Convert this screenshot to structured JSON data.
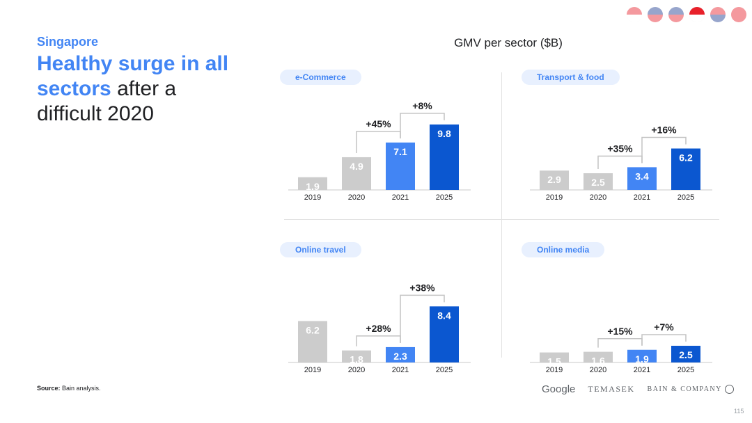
{
  "header": {
    "country": "Singapore",
    "headline_highlight": "Healthy surge in all sectors",
    "headline_rest": " after a difficult 2020",
    "flags": [
      {
        "name": "indonesia-flag-icon",
        "top": "#e8202a",
        "bottom": "#ffffff",
        "active": false
      },
      {
        "name": "malaysia-flag-icon",
        "top": "#1a3a8f",
        "bottom": "#e8202a",
        "active": false
      },
      {
        "name": "philippines-flag-icon",
        "top": "#1a3a8f",
        "bottom": "#e8202a",
        "active": false
      },
      {
        "name": "singapore-flag-icon",
        "top": "#e8202a",
        "bottom": "#ffffff",
        "active": true
      },
      {
        "name": "thailand-flag-icon",
        "top": "#e8202a",
        "bottom": "#1a3a8f",
        "active": false
      },
      {
        "name": "vietnam-flag-icon",
        "top": "#e8202a",
        "bottom": "#e8202a",
        "active": false
      }
    ]
  },
  "chart_title": "GMV per sector ($B)",
  "colors": {
    "gray": "#cccccc",
    "blue_2021": "#4285f4",
    "blue_2025": "#0b57d0",
    "bracket": "#c4c4c4"
  },
  "chart_data": [
    {
      "type": "bar",
      "title": "e-Commerce",
      "categories": [
        "2019",
        "2020",
        "2021",
        "2025"
      ],
      "values": [
        1.9,
        4.9,
        7.1,
        9.8
      ],
      "growth": [
        {
          "from": 1,
          "to": 2,
          "label": "+45%"
        },
        {
          "from": 2,
          "to": 3,
          "label": "+8%"
        }
      ]
    },
    {
      "type": "bar",
      "title": "Transport & food",
      "categories": [
        "2019",
        "2020",
        "2021",
        "2025"
      ],
      "values": [
        2.9,
        2.5,
        3.4,
        6.2
      ],
      "growth": [
        {
          "from": 1,
          "to": 2,
          "label": "+35%"
        },
        {
          "from": 2,
          "to": 3,
          "label": "+16%"
        }
      ]
    },
    {
      "type": "bar",
      "title": "Online travel",
      "categories": [
        "2019",
        "2020",
        "2021",
        "2025"
      ],
      "values": [
        6.2,
        1.8,
        2.3,
        8.4
      ],
      "growth": [
        {
          "from": 1,
          "to": 2,
          "label": "+28%"
        },
        {
          "from": 2,
          "to": 3,
          "label": "+38%"
        }
      ]
    },
    {
      "type": "bar",
      "title": "Online media",
      "categories": [
        "2019",
        "2020",
        "2021",
        "2025"
      ],
      "values": [
        1.5,
        1.6,
        1.9,
        2.5
      ],
      "growth": [
        {
          "from": 1,
          "to": 2,
          "label": "+15%"
        },
        {
          "from": 2,
          "to": 3,
          "label": "+7%"
        }
      ]
    }
  ],
  "footer": {
    "source_label": "Source:",
    "source_text": " Bain analysis.",
    "logo_google": "Google",
    "logo_temasek": "TEMASEK",
    "logo_bain": "BAIN & COMPANY",
    "page_number": "115"
  }
}
